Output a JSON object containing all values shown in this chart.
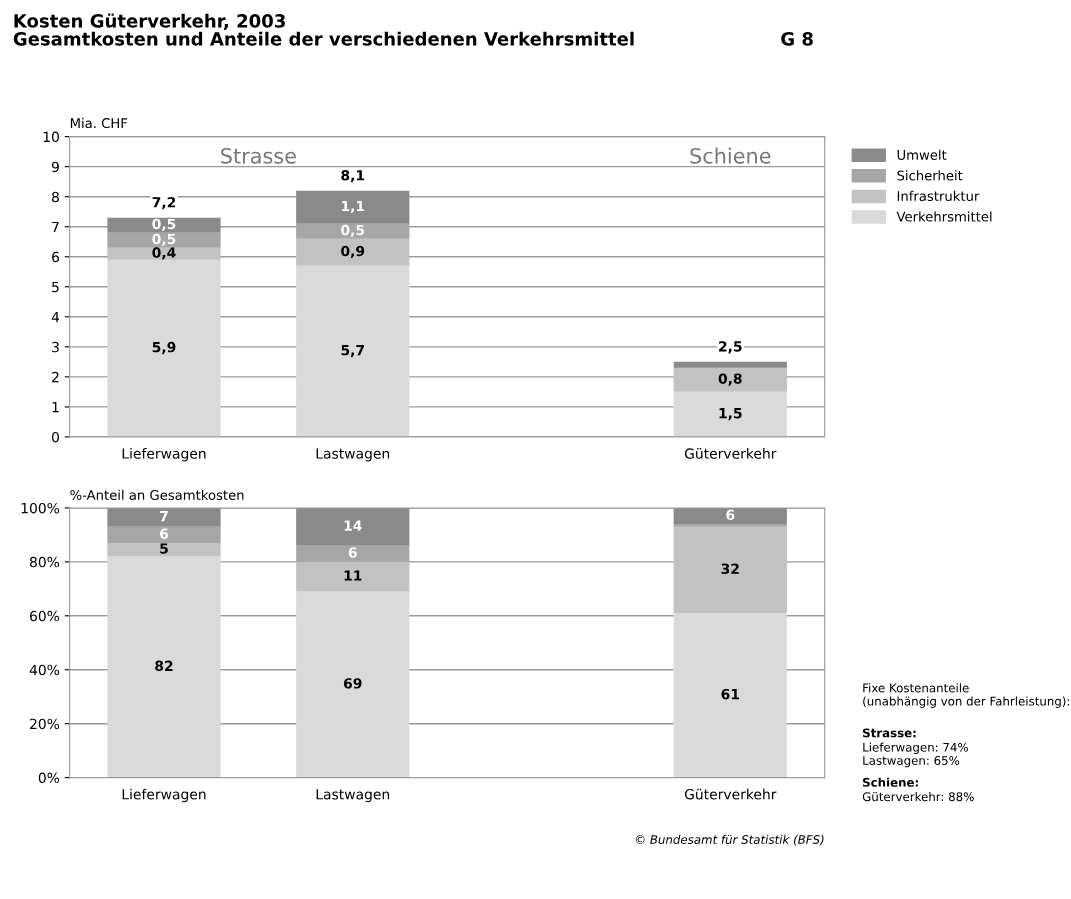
{
  "chart_data": [
    {
      "type": "bar",
      "title": "Kosten Güterverkehr, 2003",
      "subtitle": "Gesamtkosten und Anteile der verschiedenen Verkehrsmittel",
      "ylabel": "Mia. CHF",
      "categories": [
        "Lieferwagen",
        "Lastwagen",
        null,
        "Güterverkehr"
      ],
      "stacked": true,
      "series": [
        {
          "name": "Verkehrsmittel",
          "color": "#dadada",
          "values": [
            5.9,
            5.7,
            null,
            1.5
          ],
          "value_labels": [
            "5,9",
            "5,7",
            null,
            "1,5"
          ]
        },
        {
          "name": "Infrastruktur",
          "color": "#c2c2c2",
          "values": [
            0.4,
            0.9,
            null,
            0.8
          ],
          "value_labels": [
            "0,4",
            "0,9",
            null,
            "0,8"
          ]
        },
        {
          "name": "Sicherheit",
          "color": "#a6a6a6",
          "values": [
            0.5,
            0.5,
            null,
            0
          ],
          "value_labels": [
            "0,5",
            "0,5",
            null,
            null
          ]
        },
        {
          "name": "Umwelt",
          "color": "#8a8a8a",
          "values": [
            0.5,
            1.1,
            null,
            0.2
          ],
          "value_labels": [
            "0,5",
            "1,1",
            null,
            null
          ]
        }
      ],
      "totals": [
        "7,2",
        "8,1",
        null,
        "2,5"
      ],
      "ylim": [
        0,
        10
      ],
      "yticks": [
        0,
        1,
        2,
        3,
        4,
        5,
        6,
        7,
        8,
        9,
        10
      ],
      "grid": "y",
      "legend": "top right",
      "annotations": [
        "Strasse",
        "Schiene",
        "G 8"
      ]
    },
    {
      "type": "bar",
      "ylabel": "%-Anteil an Gesamtkosten",
      "categories": [
        "Lieferwagen",
        "Lastwagen",
        null,
        "Güterverkehr"
      ],
      "stacked": true,
      "series": [
        {
          "color": "#dadada",
          "values": [
            82,
            69,
            null,
            61
          ],
          "value_labels": [
            "82",
            "69",
            null,
            "61"
          ]
        },
        {
          "color": "#c2c2c2",
          "values": [
            5,
            11,
            null,
            32
          ],
          "value_labels": [
            "5",
            "11",
            null,
            "32"
          ]
        },
        {
          "color": "#a6a6a6",
          "values": [
            6,
            6,
            null,
            1
          ],
          "value_labels": [
            "6",
            "6",
            null,
            null
          ]
        },
        {
          "color": "#8a8a8a",
          "values": [
            7,
            14,
            null,
            6
          ],
          "value_labels": [
            "7",
            "14",
            null,
            "6"
          ]
        }
      ],
      "ylim": [
        0,
        100
      ],
      "yticks": [
        {
          "value": 0,
          "label": "0%"
        },
        {
          "value": 20,
          "label": "20%"
        },
        {
          "value": 40,
          "label": "40%"
        },
        {
          "value": 60,
          "label": "60%"
        },
        {
          "value": 80,
          "label": "80%"
        },
        {
          "value": 100,
          "label": "100%"
        }
      ],
      "grid": "y",
      "annotations": [
        "Fixe Kostenanteile\n(unabhängig von der Fahrleistung):",
        "Strasse:",
        "Lieferwagen: 74%\nLastwagen: 65%",
        "Schiene:",
        "Güterverkehr: 88%",
        "© Bundesamt für Statistik (BFS)"
      ]
    }
  ]
}
